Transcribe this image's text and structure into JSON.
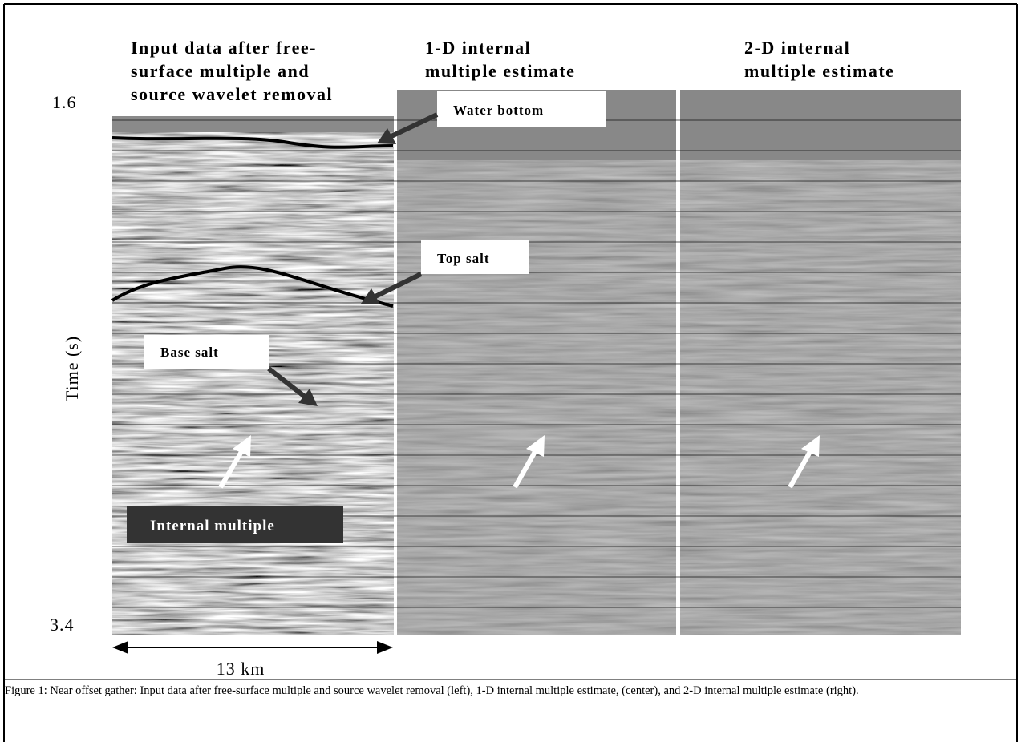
{
  "figure": {
    "panels": [
      {
        "title_lines": [
          "Input data after free-",
          "surface multiple and",
          "source wavelet removal"
        ]
      },
      {
        "title_lines": [
          "1-D internal",
          "multiple estimate"
        ]
      },
      {
        "title_lines": [
          "2-D internal",
          "multiple estimate"
        ]
      }
    ],
    "axis": {
      "label": "Time (s)",
      "top": "1.6",
      "bottom": "3.4"
    },
    "scale_bar": "13 km",
    "annotations": {
      "water_bottom": "Water bottom",
      "top_salt": "Top salt",
      "base_salt": "Base salt",
      "internal_multiple": "Internal multiple"
    }
  },
  "caption": "Figure 1:  Near offset gather: Input data after free-surface multiple and source wavelet removal (left), 1-D internal multiple estimate, (center), and 2-D internal multiple estimate (right)."
}
